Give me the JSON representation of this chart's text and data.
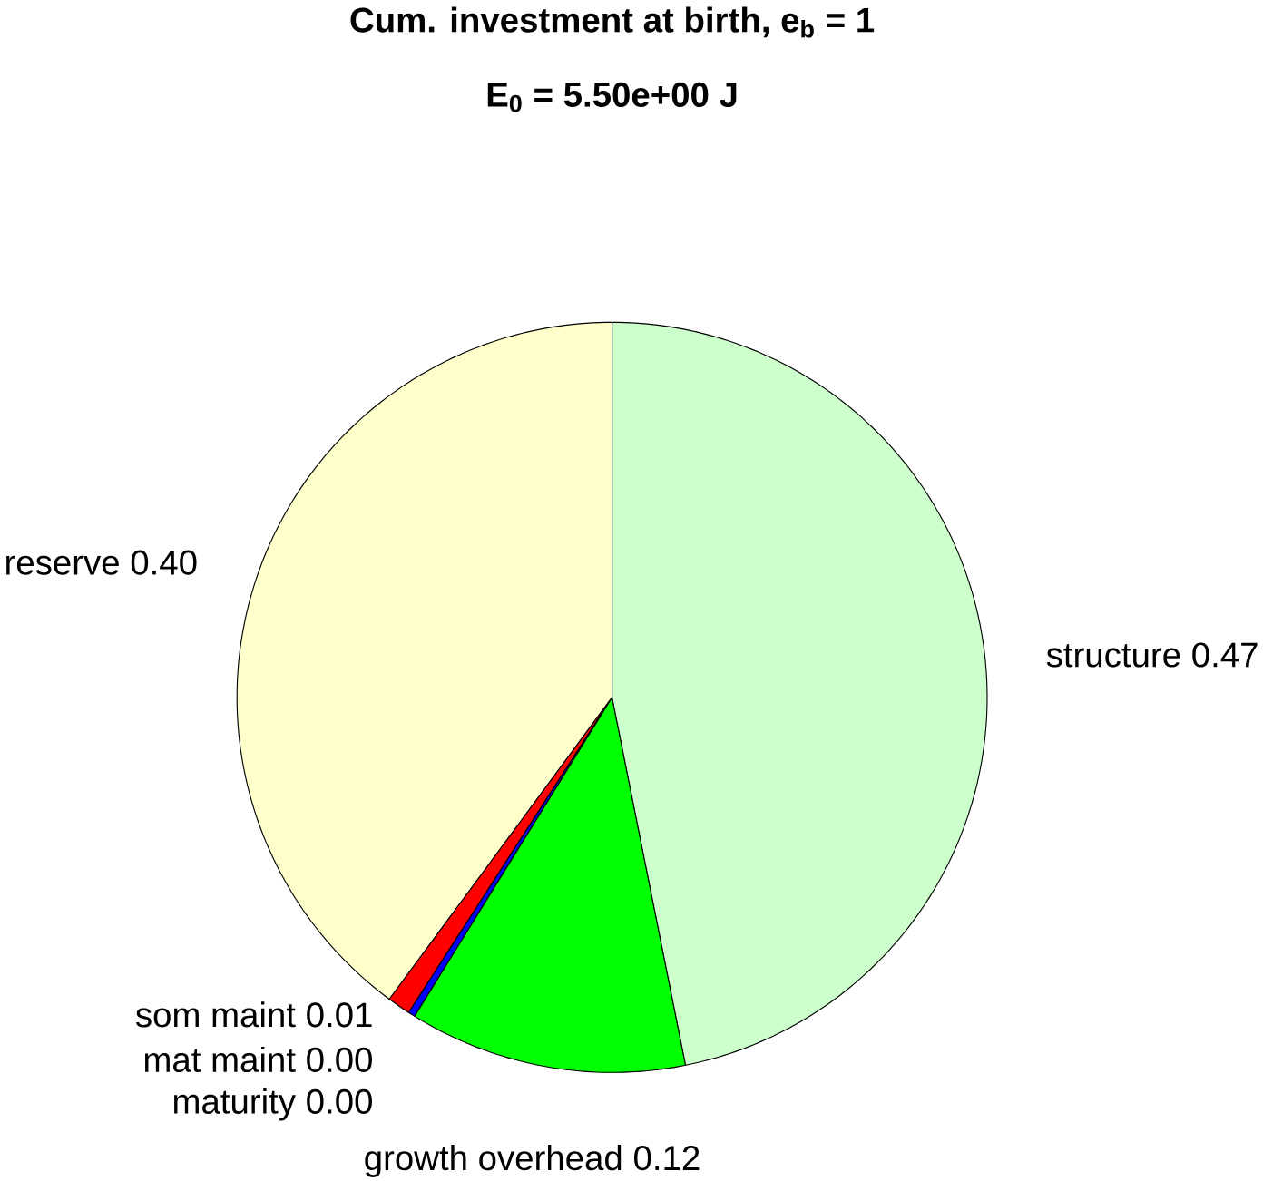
{
  "chart_data": {
    "type": "pie",
    "title": "Cum. investment at birth, e$_{b}$ = 1",
    "subtitle": "E$_{0}$ = 5.50e+00 J",
    "categories": [
      "reserve",
      "som maint",
      "mat maint",
      "maturity",
      "growth overhead",
      "structure"
    ],
    "values": [
      0.4,
      0.01,
      0.003,
      0,
      0.12,
      0.47
    ],
    "value_labels": [
      "0.40",
      "0.01",
      "0.00",
      "0.00",
      "0.12",
      "0.47"
    ],
    "colors": [
      "#ffffcc",
      "#ff0000",
      "#0000ff",
      "#ff00ff",
      "#00ff00",
      "#ccffcc"
    ]
  }
}
